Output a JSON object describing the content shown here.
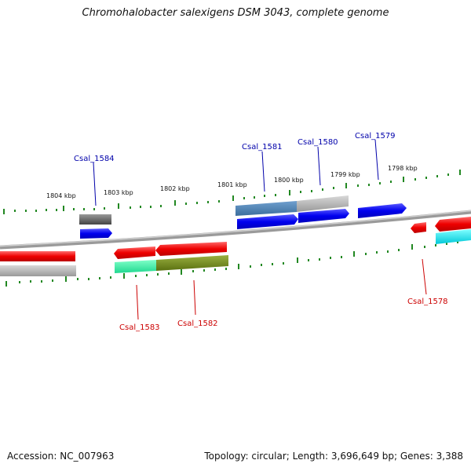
{
  "title": "Chromohalobacter salexigens DSM 3043, complete genome",
  "footer": {
    "accession": "Accession: NC_007963",
    "summary": "Topology: circular; Length: 3,696,649 bp; Genes: 3,388"
  },
  "colors": {
    "forward_strand": "#0000ee",
    "reverse_strand": "#ee0000",
    "ruler_ticks": "#228822",
    "genome_line": "#888888"
  },
  "scale_labels": [
    "1804 kbp",
    "1803 kbp",
    "1802 kbp",
    "1801 kbp",
    "1800 kbp",
    "1799 kbp",
    "1798 kbp"
  ],
  "genes": {
    "forward": [
      "Csal_1584",
      "Csal_1581",
      "Csal_1580",
      "Csal_1579"
    ],
    "reverse": [
      "Csal_1583",
      "Csal_1582",
      "Csal_1578"
    ]
  }
}
